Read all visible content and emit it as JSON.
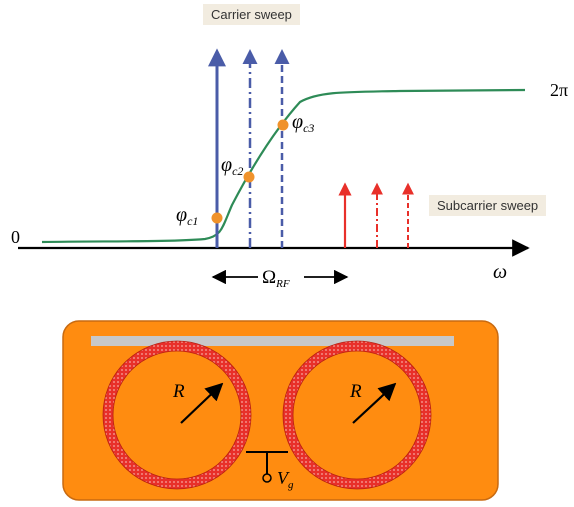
{
  "top_panel": {
    "carrier_sweep_label": "Carrier sweep",
    "subcarrier_sweep_label": "Subcarrier sweep",
    "axis_origin_label": "0",
    "axis_x_label": "ω",
    "phase_top_label": "2π",
    "phase_points": [
      {
        "base": "φ",
        "sub": "c1"
      },
      {
        "base": "φ",
        "sub": "c2"
      },
      {
        "base": "φ",
        "sub": "c3"
      }
    ],
    "rf_span_label": {
      "base": "Ω",
      "sub": "RF"
    },
    "colors": {
      "phase_curve": "#2e8b57",
      "carrier_arrows": "#4a5ca8",
      "subcarrier_arrows": "#e8302a",
      "phase_points": "#f0922b",
      "axis": "#000000"
    }
  },
  "bottom_panel": {
    "radius_labels": [
      "R",
      "R"
    ],
    "gate_label": {
      "base": "V",
      "sub": "g"
    },
    "colors": {
      "chip": "#ff8c10",
      "chip_border": "#c86a10",
      "rings": "#e8302a",
      "waveguide": "#c8c8c8"
    }
  }
}
